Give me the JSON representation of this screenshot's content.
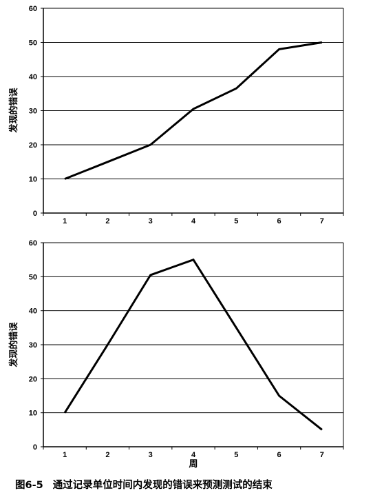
{
  "chart_data": [
    {
      "type": "line",
      "categories": [
        "1",
        "2",
        "3",
        "4",
        "5",
        "6",
        "7"
      ],
      "values": [
        10,
        15,
        20,
        30.5,
        36.5,
        48,
        50
      ],
      "ylabel": "发现的错误",
      "xlabel": "",
      "ylim": [
        0,
        60
      ],
      "yticks": [
        0,
        10,
        20,
        30,
        40,
        50,
        60
      ],
      "grid": true,
      "line_color": "#000000"
    },
    {
      "type": "line",
      "categories": [
        "1",
        "2",
        "3",
        "4",
        "5",
        "6",
        "7"
      ],
      "values": [
        10,
        30,
        50.5,
        55,
        35,
        15,
        5
      ],
      "ylabel": "发现的错误",
      "xlabel": "周",
      "ylim": [
        0,
        60
      ],
      "yticks": [
        0,
        10,
        20,
        30,
        40,
        50,
        60
      ],
      "grid": true,
      "line_color": "#000000"
    }
  ],
  "caption": {
    "number": "图6-5",
    "text": "通过记录单位时间内发现的错误来预测测试的结束"
  }
}
